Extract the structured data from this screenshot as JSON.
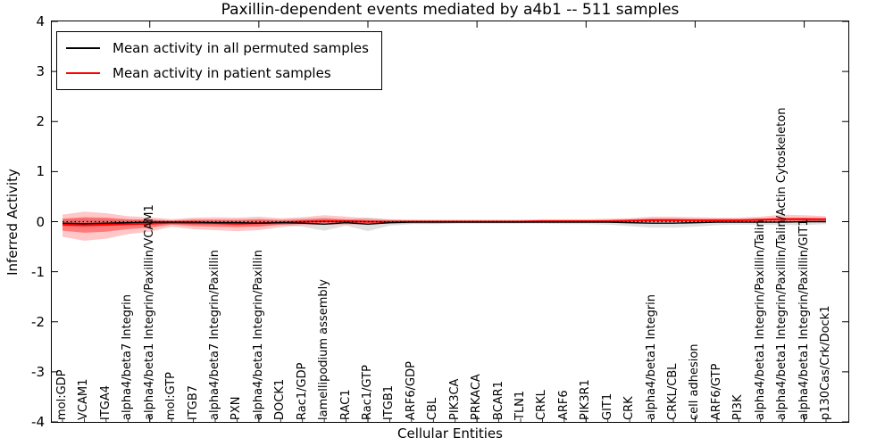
{
  "title": "Paxillin-dependent events mediated by a4b1 -- 511 samples",
  "legend": {
    "items": [
      {
        "label": "Mean activity in all permuted samples",
        "color": "#000000"
      },
      {
        "label": "Mean activity in patient samples",
        "color": "#ff0000"
      }
    ]
  },
  "axes": {
    "ylabel": "Inferred Activity",
    "xlabel": "Cellular Entities",
    "yticks": [
      4,
      3,
      2,
      1,
      0,
      -1,
      -2,
      -3,
      -4
    ],
    "ylim": [
      -4,
      4
    ],
    "x_major_tick_positions": [
      5,
      10,
      15,
      20,
      25,
      30,
      35
    ]
  },
  "colors": {
    "permuted_line": "#000000",
    "patient_line": "#ff0000",
    "permuted_band": "#999999",
    "patient_band": "#ff0000",
    "frame": "#000000",
    "background": "#ffffff"
  },
  "chart_data": {
    "type": "line",
    "title": "Paxillin-dependent events mediated by a4b1 -- 511 samples",
    "xlabel": "Cellular Entities",
    "ylabel": "Inferred Activity",
    "ylim": [
      -4,
      4
    ],
    "grid": false,
    "legend_position": "upper left",
    "categories": [
      "mol:GDP",
      "VCAM1",
      "ITGA4",
      "alpha4/beta7 Integrin",
      "alpha4/beta1 Integrin/Paxillin/VCAM1",
      "mol:GTP",
      "ITGB7",
      "alpha4/beta7 Integrin/Paxillin",
      "PXN",
      "alpha4/beta1 Integrin/Paxillin",
      "DOCK1",
      "Rac1/GDP",
      "lamellipodium assembly",
      "RAC1",
      "Rac1/GTP",
      "ITGB1",
      "ARF6/GDP",
      "CBL",
      "PIK3CA",
      "PRKACA",
      "BCAR1",
      "TLN1",
      "CRKL",
      "ARF6",
      "PIK3R1",
      "GIT1",
      "CRK",
      "alpha4/beta1 Integrin",
      "CRKL/CBL",
      "cell adhesion",
      "ARF6/GTP",
      "PI3K",
      "alpha4/beta1 Integrin/Paxillin/Talin",
      "alpha4/beta1 Integrin/Paxillin/Talin/Actin Cytoskeleton",
      "alpha4/beta1 Integrin/Paxillin/GIT1",
      "p130Cas/Crk/Dock1"
    ],
    "series": [
      {
        "name": "Mean activity in all permuted samples",
        "color": "#000000",
        "values": [
          -0.03,
          -0.04,
          -0.03,
          -0.02,
          -0.01,
          -0.01,
          -0.01,
          -0.02,
          -0.02,
          -0.03,
          -0.02,
          -0.03,
          -0.05,
          -0.02,
          -0.05,
          -0.02,
          -0.01,
          -0.01,
          -0.01,
          -0.01,
          -0.01,
          -0.01,
          -0.01,
          -0.01,
          -0.01,
          -0.01,
          -0.02,
          -0.03,
          -0.03,
          -0.02,
          -0.01,
          -0.01,
          -0.01,
          -0.01,
          0.0,
          0.0
        ]
      },
      {
        "name": "Mean activity in patient samples",
        "color": "#ff0000",
        "values": [
          -0.06,
          -0.07,
          -0.06,
          -0.05,
          -0.04,
          -0.02,
          -0.03,
          -0.03,
          -0.04,
          -0.03,
          -0.02,
          0.0,
          0.01,
          0.01,
          0.0,
          0.0,
          0.0,
          0.0,
          0.0,
          0.0,
          0.0,
          0.0,
          0.01,
          0.01,
          0.01,
          0.01,
          0.02,
          0.03,
          0.03,
          0.03,
          0.03,
          0.03,
          0.04,
          0.05,
          0.05,
          0.05
        ]
      }
    ],
    "bands": [
      {
        "name": "permuted-samples-range",
        "color": "#999999",
        "opacity": 0.3,
        "upper": [
          0.05,
          0.06,
          0.05,
          0.04,
          0.04,
          0.03,
          0.04,
          0.04,
          0.05,
          0.05,
          0.04,
          0.06,
          0.08,
          0.04,
          0.08,
          0.04,
          0.03,
          0.03,
          0.03,
          0.03,
          0.03,
          0.03,
          0.03,
          0.03,
          0.03,
          0.04,
          0.05,
          0.06,
          0.06,
          0.05,
          0.04,
          0.04,
          0.04,
          0.05,
          0.05,
          0.04
        ],
        "lower": [
          -0.1,
          -0.12,
          -0.1,
          -0.07,
          -0.06,
          -0.05,
          -0.06,
          -0.06,
          -0.08,
          -0.09,
          -0.07,
          -0.1,
          -0.18,
          -0.08,
          -0.19,
          -0.08,
          -0.05,
          -0.05,
          -0.04,
          -0.04,
          -0.04,
          -0.04,
          -0.04,
          -0.05,
          -0.05,
          -0.06,
          -0.09,
          -0.12,
          -0.12,
          -0.1,
          -0.07,
          -0.06,
          -0.06,
          -0.07,
          -0.07,
          -0.05
        ]
      },
      {
        "name": "patient-samples-outer-range",
        "color": "#ff0000",
        "opacity": 0.22,
        "upper": [
          0.14,
          0.2,
          0.17,
          0.11,
          0.09,
          0.05,
          0.08,
          0.09,
          0.08,
          0.1,
          0.07,
          0.09,
          0.13,
          0.1,
          0.07,
          0.05,
          0.04,
          0.04,
          0.04,
          0.04,
          0.04,
          0.04,
          0.05,
          0.05,
          0.05,
          0.06,
          0.07,
          0.1,
          0.1,
          0.09,
          0.08,
          0.08,
          0.1,
          0.14,
          0.13,
          0.11
        ],
        "lower": [
          -0.3,
          -0.38,
          -0.34,
          -0.25,
          -0.2,
          -0.1,
          -0.15,
          -0.17,
          -0.19,
          -0.17,
          -0.11,
          -0.07,
          -0.06,
          -0.06,
          -0.05,
          -0.04,
          -0.04,
          -0.04,
          -0.03,
          -0.03,
          -0.03,
          -0.03,
          -0.02,
          -0.02,
          -0.02,
          -0.02,
          -0.01,
          -0.01,
          -0.01,
          -0.01,
          -0.01,
          0.0,
          0.0,
          0.0,
          0.0,
          0.0
        ]
      },
      {
        "name": "patient-samples-inner-range",
        "color": "#ff0000",
        "opacity": 0.38,
        "upper": [
          0.06,
          0.09,
          0.08,
          0.05,
          0.04,
          0.02,
          0.04,
          0.04,
          0.03,
          0.05,
          0.03,
          0.04,
          0.06,
          0.05,
          0.03,
          0.02,
          0.02,
          0.02,
          0.02,
          0.02,
          0.02,
          0.02,
          0.03,
          0.03,
          0.03,
          0.03,
          0.04,
          0.06,
          0.06,
          0.05,
          0.05,
          0.05,
          0.06,
          0.08,
          0.08,
          0.07
        ],
        "lower": [
          -0.18,
          -0.22,
          -0.2,
          -0.15,
          -0.12,
          -0.06,
          -0.09,
          -0.1,
          -0.11,
          -0.1,
          -0.06,
          -0.04,
          -0.03,
          -0.03,
          -0.03,
          -0.02,
          -0.02,
          -0.02,
          -0.02,
          -0.02,
          -0.02,
          -0.02,
          -0.01,
          -0.01,
          -0.01,
          -0.01,
          0.0,
          0.0,
          0.0,
          0.0,
          0.0,
          0.01,
          0.01,
          0.02,
          0.02,
          0.02
        ]
      }
    ],
    "zero_line": {
      "y": 0,
      "style": "dotted",
      "color": "#000000"
    }
  }
}
